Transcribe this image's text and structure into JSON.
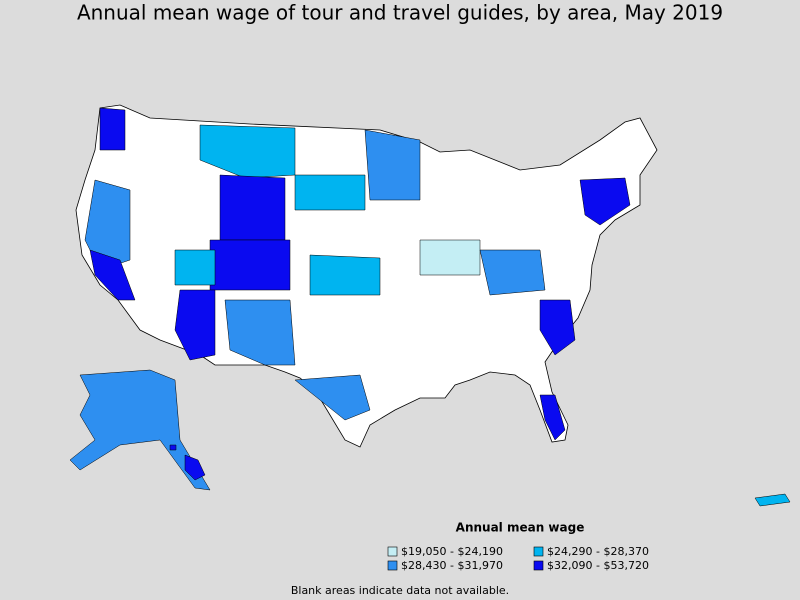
{
  "title": "Annual mean wage of tour and travel guides, by area, May 2019",
  "legend": {
    "title": "Annual mean wage",
    "items": [
      {
        "label": "$19,050 - $24,190",
        "color": "#c4eef4"
      },
      {
        "label": "$24,290 - $28,370",
        "color": "#00b4f0"
      },
      {
        "label": "$28,430 - $31,970",
        "color": "#2e8ff0"
      },
      {
        "label": "$32,090 - $53,720",
        "color": "#0a0af0"
      }
    ]
  },
  "note": "Blank areas indicate data not available."
}
